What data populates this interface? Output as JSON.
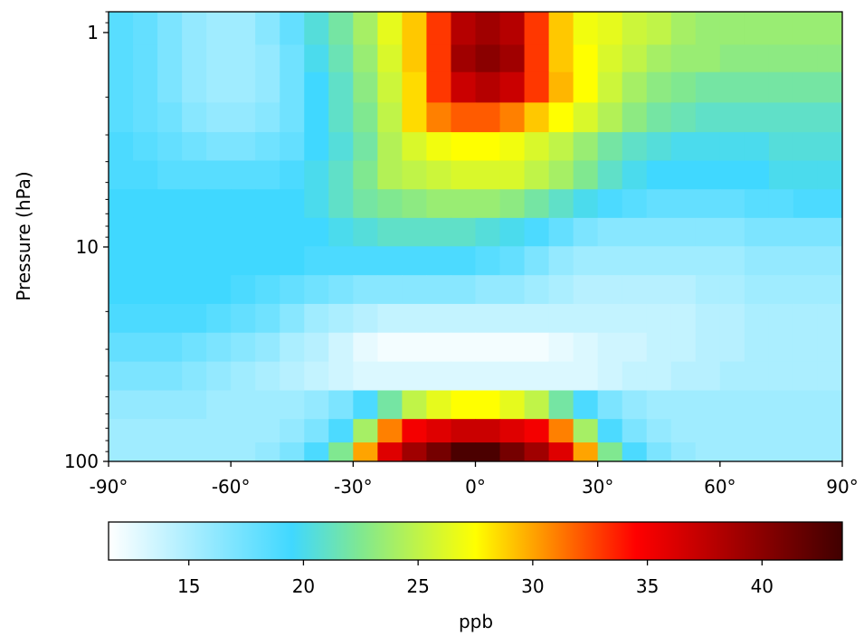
{
  "chart_data": {
    "type": "heatmap",
    "title": "",
    "xlabel": "",
    "ylabel": "Pressure (hPa)",
    "x_ticks": [
      "-90°",
      "-60°",
      "-30°",
      "0°",
      "30°",
      "60°",
      "90°"
    ],
    "x_tick_values": [
      -90,
      -60,
      -30,
      0,
      30,
      60,
      90
    ],
    "y_scale": "log",
    "y_inverted": true,
    "y_ticks": [
      "1",
      "10",
      "100"
    ],
    "y_tick_values": [
      1,
      10,
      100
    ],
    "xlim": [
      -90,
      90
    ],
    "ylim": [
      100,
      0.8
    ],
    "lat": [
      -87,
      -81,
      -75,
      -69,
      -63,
      -57,
      -51,
      -45,
      -39,
      -33,
      -27,
      -21,
      -15,
      -9,
      -3,
      3,
      9,
      15,
      21,
      27,
      33,
      39,
      45,
      51,
      57,
      63,
      69,
      75,
      81,
      87
    ],
    "pressure_levels": [
      1,
      1.3,
      1.8,
      2.5,
      3.4,
      4.6,
      6.3,
      8.5,
      11.6,
      15.8,
      21.5,
      29.3,
      40,
      54.4,
      74,
      90
    ],
    "values": [
      [
        18.5,
        18,
        17,
        16,
        15.5,
        15.5,
        16.5,
        18,
        20.5,
        22,
        24,
        26.5,
        29,
        33,
        38,
        39,
        38,
        33,
        29,
        27,
        26.5,
        25.5,
        25,
        24,
        23.5,
        23.5,
        23.5,
        23.5,
        23.5,
        23.5
      ],
      [
        18.5,
        18,
        17,
        16,
        15.5,
        15.5,
        16,
        17.5,
        20,
        21.5,
        23.5,
        26,
        29,
        33,
        39,
        40,
        39,
        33,
        29,
        27.5,
        26,
        25,
        24,
        23.5,
        23.5,
        23,
        23,
        23,
        23,
        23
      ],
      [
        18.5,
        18,
        17,
        16,
        15.5,
        15.5,
        16,
        17.5,
        19.5,
        21,
        23,
        25.5,
        28.5,
        33,
        37,
        38,
        37,
        33,
        29.5,
        27.5,
        25.5,
        24,
        23,
        22.5,
        22,
        22,
        22,
        22,
        22,
        22
      ],
      [
        18.5,
        18,
        17.5,
        16.5,
        16,
        16,
        16.5,
        17.5,
        19.5,
        21,
        22.5,
        25,
        28.5,
        31,
        32,
        32,
        31,
        29,
        27.5,
        26,
        24.5,
        23,
        22,
        21.5,
        21,
        21,
        21,
        21,
        21,
        21
      ],
      [
        19,
        18.5,
        18,
        17.5,
        17,
        17,
        17.5,
        18,
        19.5,
        20.5,
        22,
        24.5,
        26,
        27,
        27.5,
        27.5,
        27,
        26,
        25,
        23.5,
        22,
        21,
        20.5,
        20,
        20,
        20,
        20,
        20.5,
        20.5,
        20.5
      ],
      [
        19,
        19,
        18.5,
        18.5,
        18.5,
        18.5,
        18.5,
        19,
        20,
        21,
        22.5,
        24.5,
        25,
        25.5,
        26,
        26,
        26,
        25,
        24,
        22.5,
        21,
        20,
        19.5,
        19.5,
        19.5,
        19.5,
        19.5,
        20,
        20,
        20
      ],
      [
        19.5,
        19.5,
        19.5,
        19.5,
        19.5,
        19.5,
        19.5,
        19.5,
        20,
        21,
        22,
        22.5,
        23,
        23.5,
        23.5,
        23.5,
        23,
        22,
        21,
        20,
        19,
        18.5,
        18,
        18,
        18,
        18,
        18.5,
        18.5,
        19,
        19
      ],
      [
        19.5,
        19.5,
        19.5,
        19.5,
        19.5,
        19.5,
        19.5,
        19.5,
        19.5,
        20,
        20.5,
        21,
        21,
        21,
        21,
        20.5,
        20,
        19,
        18,
        17,
        16.5,
        16.5,
        16.5,
        16.5,
        16.5,
        16.5,
        17,
        17,
        17,
        17
      ],
      [
        19.5,
        19.5,
        19.5,
        19.5,
        19.5,
        19.5,
        19.5,
        19.5,
        19,
        19,
        19,
        19,
        19,
        19,
        19,
        18.5,
        18,
        17,
        16,
        15.5,
        15.5,
        15.5,
        15.5,
        15.5,
        15.5,
        15.5,
        16,
        16,
        16,
        16
      ],
      [
        19.5,
        19.5,
        19.5,
        19.5,
        19.5,
        19,
        18.5,
        18,
        17.5,
        17,
        16.5,
        16.5,
        16.5,
        16.5,
        16.5,
        16,
        16,
        15.5,
        15,
        14.5,
        14.5,
        14.5,
        14.5,
        14.5,
        15,
        15,
        15.5,
        15.5,
        15.5,
        15.5
      ],
      [
        19,
        19,
        19,
        19,
        18.5,
        18,
        17.5,
        16.5,
        15.5,
        15,
        14.5,
        14,
        14,
        14,
        14,
        14,
        14,
        14,
        14,
        14,
        14,
        14,
        14,
        14,
        14.5,
        14.5,
        15,
        15,
        15,
        15
      ],
      [
        18,
        18,
        18,
        17.5,
        17,
        16.5,
        16,
        15,
        14.5,
        13.5,
        12.5,
        12,
        12,
        12,
        12,
        12,
        12,
        12,
        12.5,
        13,
        13.5,
        13.5,
        14,
        14,
        14.5,
        14.5,
        15,
        15,
        15,
        15
      ],
      [
        17,
        17,
        17,
        16.5,
        16,
        15.5,
        15,
        14.5,
        14,
        13.5,
        13,
        13,
        13,
        13,
        13,
        13,
        13,
        13,
        13,
        13,
        13.5,
        14,
        14,
        14.5,
        14.5,
        15,
        15,
        15,
        15,
        15
      ],
      [
        16,
        16,
        16,
        16,
        15.5,
        15.5,
        15.5,
        15.5,
        16,
        17,
        19,
        22,
        25,
        26.5,
        27.5,
        27.5,
        26.5,
        25,
        22,
        19,
        17,
        16,
        15.5,
        15.5,
        15.5,
        15.5,
        15.5,
        15.5,
        15.5,
        15.5
      ],
      [
        15.5,
        15.5,
        15.5,
        15.5,
        15.5,
        15.5,
        15.5,
        16,
        17,
        19,
        24,
        31,
        35,
        36,
        37,
        37,
        36,
        35,
        31,
        24,
        19,
        17,
        16,
        15.5,
        15.5,
        15.5,
        15.5,
        15.5,
        15.5,
        15.5
      ],
      [
        15.5,
        15.5,
        15.5,
        15.5,
        15.5,
        15.5,
        16,
        17,
        19,
        22.5,
        30,
        36,
        39,
        41,
        43,
        43,
        41,
        39,
        36,
        30,
        22.5,
        19,
        17,
        16,
        15.5,
        15.5,
        15.5,
        15.5,
        15.5,
        15.5
      ]
    ],
    "colorbar": {
      "label": "ppb",
      "range": [
        11.5,
        43.5
      ],
      "ticks": [
        "15",
        "20",
        "25",
        "30",
        "35",
        "40"
      ],
      "tick_values": [
        15,
        20,
        25,
        30,
        35,
        40
      ],
      "colormap_stops": [
        {
          "value": 11.5,
          "color": "#ffffff"
        },
        {
          "value": 19.5,
          "color": "#40d8ff"
        },
        {
          "value": 22.5,
          "color": "#80e890"
        },
        {
          "value": 27.5,
          "color": "#ffff00"
        },
        {
          "value": 34.5,
          "color": "#ff0000"
        },
        {
          "value": 43.5,
          "color": "#400000"
        }
      ]
    }
  }
}
